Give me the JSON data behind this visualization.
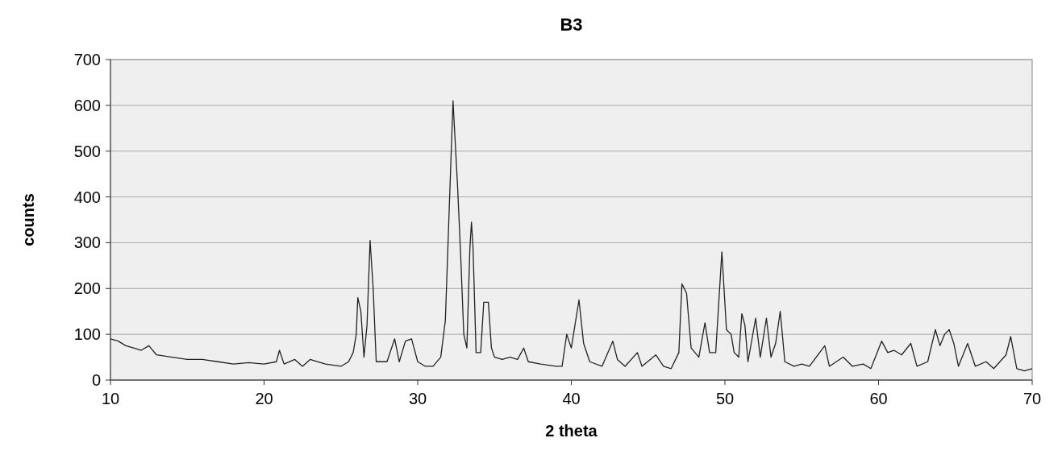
{
  "chart_data": {
    "type": "line",
    "title": "B3",
    "xlabel": "2 theta",
    "ylabel": "counts",
    "xlim": [
      10,
      70
    ],
    "xticks": [
      10,
      20,
      30,
      40,
      50,
      60,
      70
    ],
    "ylim": [
      0,
      700
    ],
    "yticks": [
      0,
      100,
      200,
      300,
      400,
      500,
      600,
      700
    ],
    "grid": "y",
    "series": [
      {
        "color": "#222222",
        "x": [
          10,
          10.5,
          11,
          11.5,
          12,
          12.5,
          13,
          14,
          15,
          16,
          17,
          18,
          19,
          20,
          20.8,
          21,
          21.3,
          22,
          22.5,
          23,
          23.5,
          24,
          25,
          25.5,
          25.8,
          26,
          26.1,
          26.3,
          26.5,
          26.7,
          26.9,
          27.1,
          27.3,
          28,
          28.5,
          28.8,
          29.2,
          29.6,
          30,
          30.5,
          31,
          31.5,
          31.8,
          32.1,
          32.3,
          32.6,
          32.8,
          33,
          33.2,
          33.4,
          33.5,
          33.6,
          33.8,
          34.1,
          34.3,
          34.6,
          34.8,
          35,
          35.5,
          36,
          36.5,
          36.9,
          37.2,
          38,
          39,
          39.4,
          39.7,
          40,
          40.5,
          40.8,
          41.2,
          42,
          42.7,
          43,
          43.5,
          44.3,
          44.6,
          45.5,
          46,
          46.5,
          47,
          47.2,
          47.5,
          47.8,
          48.3,
          48.7,
          49,
          49.4,
          49.8,
          50.1,
          50.4,
          50.6,
          50.9,
          51.1,
          51.3,
          51.5,
          52,
          52.3,
          52.7,
          53,
          53.3,
          53.6,
          53.9,
          54.5,
          55,
          55.5,
          56.5,
          56.8,
          57.7,
          58.3,
          59,
          59.5,
          60.2,
          60.6,
          61,
          61.5,
          62.1,
          62.5,
          63.2,
          63.7,
          64,
          64.3,
          64.6,
          64.9,
          65.2,
          65.8,
          66.3,
          67,
          67.5,
          68.3,
          68.6,
          69,
          69.5,
          70
        ],
        "values": [
          90,
          85,
          75,
          70,
          65,
          75,
          55,
          50,
          45,
          45,
          40,
          35,
          38,
          35,
          40,
          65,
          35,
          45,
          30,
          45,
          40,
          35,
          30,
          40,
          60,
          100,
          180,
          150,
          50,
          120,
          305,
          200,
          40,
          40,
          90,
          40,
          85,
          90,
          40,
          30,
          30,
          50,
          130,
          420,
          610,
          420,
          270,
          100,
          70,
          290,
          345,
          290,
          60,
          60,
          170,
          170,
          70,
          50,
          45,
          50,
          45,
          70,
          40,
          35,
          30,
          30,
          100,
          70,
          175,
          80,
          40,
          30,
          85,
          45,
          30,
          60,
          30,
          55,
          30,
          25,
          60,
          210,
          190,
          70,
          50,
          125,
          60,
          60,
          280,
          110,
          100,
          60,
          50,
          145,
          120,
          40,
          135,
          50,
          135,
          50,
          80,
          150,
          40,
          30,
          35,
          30,
          75,
          30,
          50,
          30,
          35,
          25,
          85,
          60,
          65,
          55,
          80,
          30,
          40,
          110,
          75,
          100,
          110,
          80,
          30,
          80,
          30,
          40,
          25,
          55,
          95,
          25,
          20,
          25
        ]
      }
    ]
  }
}
